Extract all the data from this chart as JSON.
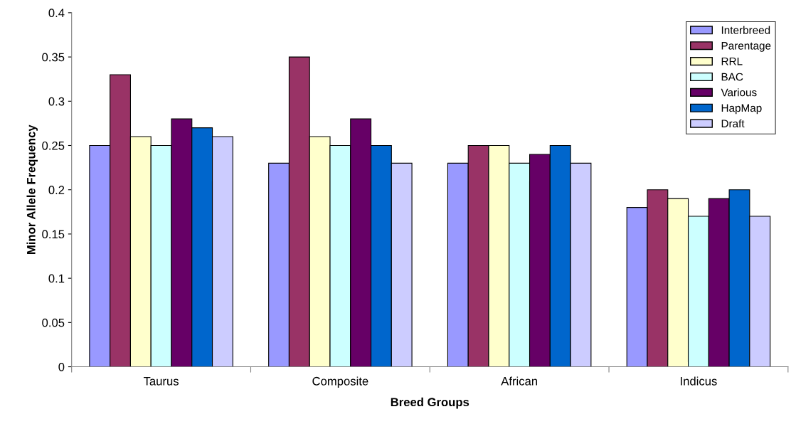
{
  "chart_data": {
    "type": "bar",
    "xlabel": "Breed Groups",
    "ylabel": "Minor Allele Frequency",
    "categories": [
      "Taurus",
      "Composite",
      "African",
      "Indicus"
    ],
    "series": [
      {
        "name": "Interbreed",
        "color": "#9999ff",
        "values": [
          0.25,
          0.23,
          0.23,
          0.18
        ]
      },
      {
        "name": "Parentage",
        "color": "#993366",
        "values": [
          0.33,
          0.35,
          0.25,
          0.2
        ]
      },
      {
        "name": "RRL",
        "color": "#ffffcc",
        "values": [
          0.26,
          0.26,
          0.25,
          0.19
        ]
      },
      {
        "name": "BAC",
        "color": "#ccffff",
        "values": [
          0.25,
          0.25,
          0.23,
          0.17
        ]
      },
      {
        "name": "Various",
        "color": "#660066",
        "values": [
          0.28,
          0.28,
          0.24,
          0.19
        ]
      },
      {
        "name": "HapMap",
        "color": "#0066cc",
        "values": [
          0.27,
          0.25,
          0.25,
          0.2
        ]
      },
      {
        "name": "Draft",
        "color": "#ccccff",
        "values": [
          0.26,
          0.23,
          0.23,
          0.17
        ]
      }
    ],
    "ylim": [
      0,
      0.4
    ],
    "yticks": [
      0,
      0.05,
      0.1,
      0.15,
      0.2,
      0.25,
      0.3,
      0.35,
      0.4
    ],
    "grid": false,
    "legend": "top right"
  }
}
